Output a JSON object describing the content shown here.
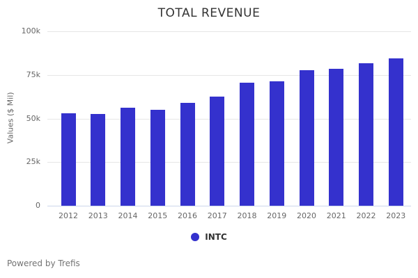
{
  "title": "TOTAL REVENUE",
  "y_axis": {
    "title": "Values ($ Mil)",
    "ticks": [
      {
        "label": "100k",
        "value": 100000
      },
      {
        "label": "75k",
        "value": 75000
      },
      {
        "label": "50k",
        "value": 50000
      },
      {
        "label": "25k",
        "value": 25000
      },
      {
        "label": "0",
        "value": 0
      }
    ]
  },
  "legend": {
    "series_label": "INTC"
  },
  "footer": {
    "text": "Powered by Trefis"
  },
  "colors": {
    "bar": "#3431cd",
    "gridline": "#e6e6e6",
    "axis_line": "#ccd6eb",
    "title_text": "#333333",
    "muted_text": "#666666",
    "footer_text": "#737373"
  },
  "chart_data": {
    "type": "bar",
    "title": "TOTAL REVENUE",
    "xlabel": "",
    "ylabel": "Values ($ Mil)",
    "ylim": [
      0,
      100000
    ],
    "grid": true,
    "legend_position": "bottom",
    "categories": [
      "2012",
      "2013",
      "2014",
      "2015",
      "2016",
      "2017",
      "2018",
      "2019",
      "2020",
      "2021",
      "2022",
      "2023"
    ],
    "series": [
      {
        "name": "INTC",
        "values": [
          53000,
          52500,
          56000,
          55000,
          59000,
          62500,
          70500,
          71500,
          77500,
          78500,
          81500,
          84500
        ]
      }
    ]
  }
}
